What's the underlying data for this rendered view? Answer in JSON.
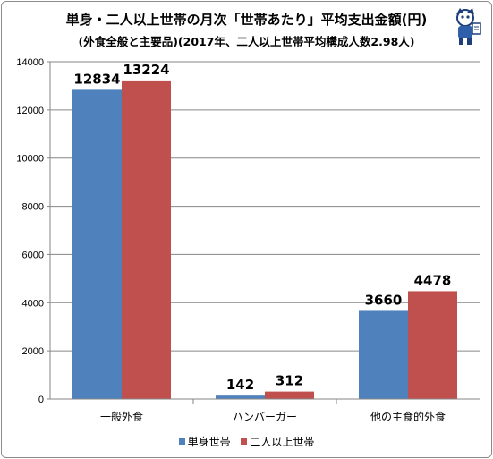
{
  "chart_data": {
    "type": "bar",
    "title": "単身・二人以上世帯の月次「世帯あたり」平均支出金額(円)",
    "subtitle": "(外食全般と主要品)(2017年、二人以上世帯平均構成人数2.98人)",
    "categories": [
      "一般外食",
      "ハンバーガー",
      "他の主食的外食"
    ],
    "series": [
      {
        "name": "単身世帯",
        "values": [
          12834,
          142,
          3660
        ],
        "color": "#4f81bd"
      },
      {
        "name": "二人以上世帯",
        "values": [
          13224,
          312,
          4478
        ],
        "color": "#c0504d"
      }
    ],
    "ylim": [
      0,
      14000
    ],
    "yticks": [
      0,
      2000,
      4000,
      6000,
      8000,
      10000,
      12000,
      14000
    ],
    "grid": true,
    "legend_position": "bottom",
    "xlabel": "",
    "ylabel": ""
  }
}
